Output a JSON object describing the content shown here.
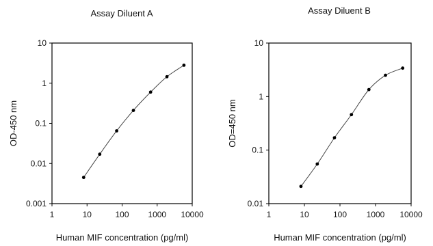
{
  "chart_data": [
    {
      "type": "line",
      "title": "Assay Diluent A",
      "xlabel": "Human MIF concentration (pg/ml)",
      "ylabel": "OD-450 nm",
      "xscale": "log",
      "yscale": "log",
      "xlim": [
        1,
        10000
      ],
      "ylim": [
        0.001,
        10
      ],
      "xticks": [
        1,
        10,
        100,
        1000,
        10000
      ],
      "xtick_labels": [
        "1",
        "10",
        "100",
        "1000",
        "10000"
      ],
      "yticks": [
        0.001,
        0.01,
        0.1,
        1,
        10
      ],
      "ytick_labels": [
        "0.001",
        "0.01",
        "0.1",
        "1",
        "10"
      ],
      "grid": false,
      "series": [
        {
          "x": [
            8,
            23,
            70,
            210,
            650,
            1900,
            5800
          ],
          "y": [
            0.0045,
            0.017,
            0.065,
            0.21,
            0.6,
            1.45,
            2.8
          ]
        }
      ]
    },
    {
      "type": "line",
      "title": "Assay Diluent B",
      "xlabel": "Human MIF concentration (pg/ml)",
      "ylabel": "OD=450 nm",
      "xscale": "log",
      "yscale": "log",
      "xlim": [
        1,
        10000
      ],
      "ylim": [
        0.01,
        10
      ],
      "xticks": [
        1,
        10,
        100,
        1000,
        10000
      ],
      "xtick_labels": [
        "1",
        "10",
        "100",
        "1000",
        "10000"
      ],
      "yticks": [
        0.01,
        0.1,
        1,
        10
      ],
      "ytick_labels": [
        "0.01",
        "0.1",
        "1",
        "10"
      ],
      "grid": false,
      "series": [
        {
          "x": [
            8,
            23,
            70,
            210,
            650,
            1900,
            5800
          ],
          "y": [
            0.021,
            0.055,
            0.17,
            0.46,
            1.35,
            2.5,
            3.4
          ]
        }
      ]
    }
  ]
}
